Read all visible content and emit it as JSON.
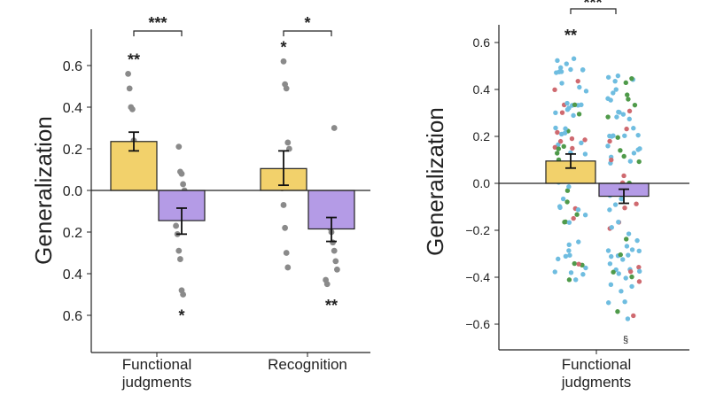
{
  "chart_data": [
    {
      "type": "bar",
      "ylabel": "Generalization",
      "ylim": [
        -0.76,
        0.78
      ],
      "yticks": [
        0.6,
        0.4,
        0.2,
        0.0,
        0.2,
        0.4,
        0.6
      ],
      "ytick_values": [
        0.6,
        0.4,
        0.2,
        0.0,
        -0.2,
        -0.4,
        -0.6
      ],
      "categories": [
        "Functional\njudgments",
        "Recognition"
      ],
      "colors": [
        "#f2d16b",
        "#b49be6"
      ],
      "bars": [
        {
          "group": 0,
          "color_index": 0,
          "mean": 0.235,
          "err_low": 0.19,
          "err_high": 0.28,
          "sig": "**",
          "points": [
            0.56,
            0.49,
            0.4,
            0.39,
            0.24,
            0.22,
            0.19,
            0.18,
            0.15,
            0.14,
            0.1,
            0.05,
            0.04
          ]
        },
        {
          "group": 0,
          "color_index": 1,
          "mean": -0.145,
          "err_low": -0.21,
          "err_high": -0.085,
          "sig": "*",
          "points": [
            0.21,
            0.09,
            0.08,
            0.03,
            0.0,
            -0.04,
            -0.09,
            -0.17,
            -0.21,
            -0.29,
            -0.33,
            -0.48,
            -0.5
          ]
        },
        {
          "group": 1,
          "color_index": 0,
          "mean": 0.105,
          "err_low": 0.025,
          "err_high": 0.19,
          "sig": "*",
          "points": [
            0.62,
            0.51,
            0.49,
            0.23,
            0.2,
            0.09,
            0.06,
            0.03,
            0.01,
            -0.07,
            -0.18,
            -0.3,
            -0.37
          ]
        },
        {
          "group": 1,
          "color_index": 1,
          "mean": -0.185,
          "err_low": -0.245,
          "err_high": -0.13,
          "sig": "**",
          "points": [
            0.3,
            -0.05,
            -0.06,
            -0.1,
            -0.11,
            -0.14,
            -0.18,
            -0.2,
            -0.25,
            -0.29,
            -0.34,
            -0.38,
            -0.43,
            -0.45
          ]
        }
      ],
      "comparisons": [
        {
          "group": 0,
          "label": "***"
        },
        {
          "group": 1,
          "label": "*"
        }
      ]
    },
    {
      "type": "bar",
      "ylabel": "Generalization",
      "ylim": [
        -0.7,
        0.68
      ],
      "yticks": [
        "0.6",
        "0.4",
        "0.2",
        "0.0",
        "−0.2",
        "−0.4",
        "−0.6"
      ],
      "ytick_values": [
        0.6,
        0.4,
        0.2,
        0.0,
        -0.2,
        -0.4,
        -0.6
      ],
      "categories": [
        "Functional\njudgments"
      ],
      "colors": [
        "#f2d16b",
        "#b49be6"
      ],
      "point_colors": [
        "#6fbde0",
        "#cf6a70",
        "#4f9a4a"
      ],
      "bars": [
        {
          "color_index": 0,
          "mean": 0.095,
          "err_low": 0.065,
          "err_high": 0.125,
          "sig": "**"
        },
        {
          "color_index": 1,
          "mean": -0.055,
          "err_low": -0.085,
          "err_high": -0.025,
          "sig": "§"
        }
      ],
      "comparisons": [
        {
          "label": "***"
        }
      ]
    }
  ]
}
